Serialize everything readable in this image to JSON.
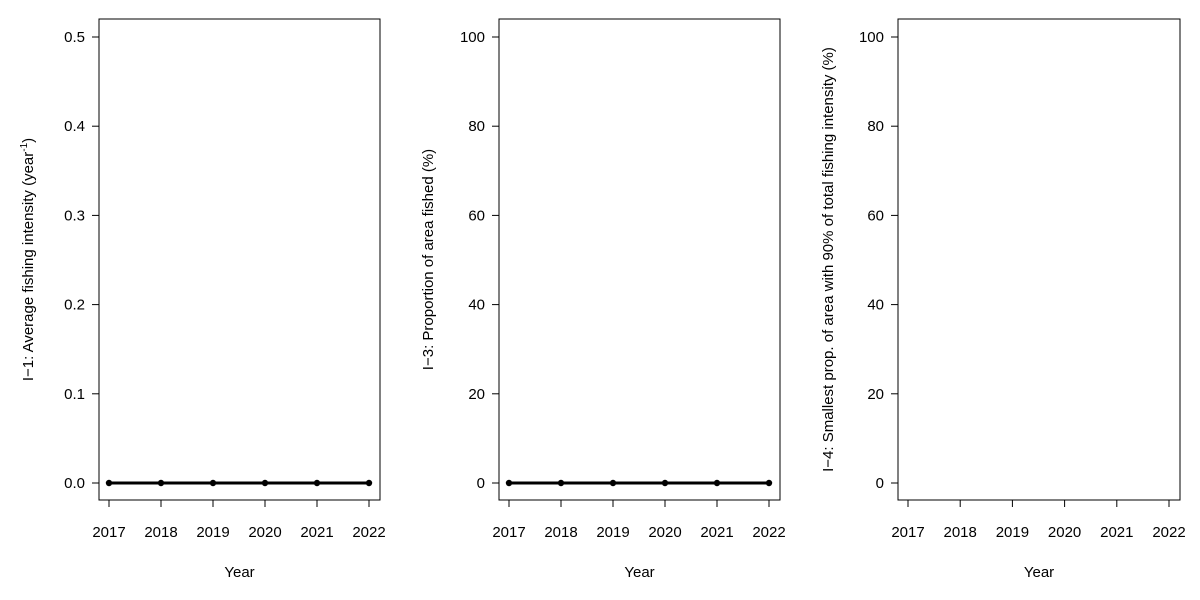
{
  "chart_data": [
    {
      "type": "line",
      "xlabel": "Year",
      "ylabel": "I−1: Average fishing intensity (year",
      "ylabel_sup": "-1",
      "ylabel_close": ")",
      "x": [
        2017,
        2018,
        2019,
        2020,
        2021,
        2022
      ],
      "xlim": [
        2017,
        2022
      ],
      "ylim": [
        0,
        0.5
      ],
      "yticks": [
        "0.0",
        "0.1",
        "0.2",
        "0.3",
        "0.4",
        "0.5"
      ],
      "series": [
        {
          "values": [
            0,
            0,
            0,
            0,
            0,
            0
          ]
        }
      ],
      "grid": false
    },
    {
      "type": "line",
      "xlabel": "Year",
      "ylabel": "I−3: Proportion of area fished (%)",
      "ylabel_sup": "",
      "ylabel_close": "",
      "x": [
        2017,
        2018,
        2019,
        2020,
        2021,
        2022
      ],
      "xlim": [
        2017,
        2022
      ],
      "ylim": [
        0,
        100
      ],
      "yticks": [
        "0",
        "20",
        "40",
        "60",
        "80",
        "100"
      ],
      "series": [
        {
          "values": [
            0,
            0,
            0,
            0,
            0,
            0
          ]
        }
      ],
      "grid": false
    },
    {
      "type": "line",
      "xlabel": "Year",
      "ylabel": "I−4: Smallest  prop. of area with 90% of total fishing intensity (%)",
      "ylabel_sup": "",
      "ylabel_close": "",
      "x": [
        2017,
        2018,
        2019,
        2020,
        2021,
        2022
      ],
      "xlim": [
        2017,
        2022
      ],
      "ylim": [
        0,
        100
      ],
      "yticks": [
        "0",
        "20",
        "40",
        "60",
        "80",
        "100"
      ],
      "series": [],
      "grid": false
    }
  ]
}
